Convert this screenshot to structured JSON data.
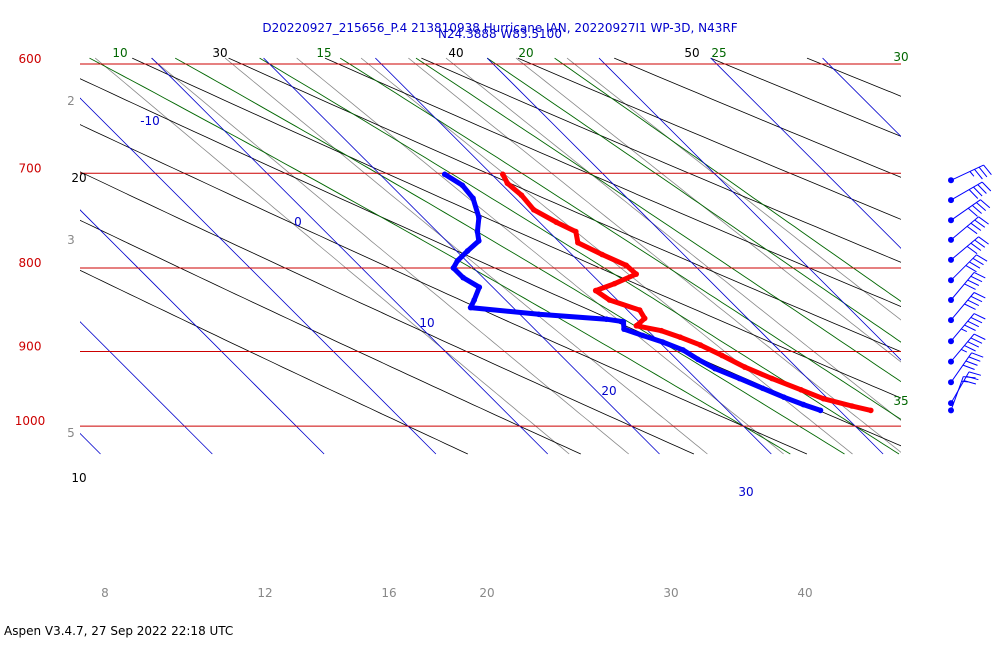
{
  "header": {
    "line1": "D20220927_215656_P.4 213810938 Hurricane IAN, 20220927I1 WP-3D, N43RF",
    "line2": "N24.3888 W83.5100"
  },
  "footer": "Aspen V3.4.7, 27 Sep 2022  22:18 UTC",
  "colors": {
    "isobar": "#cc0000",
    "temperature": "#ff0000",
    "dewpoint": "#0000ff",
    "isotherm": "#0000cc",
    "dry_adiabat": "#000000",
    "moist_adiabat": "#006600",
    "mixing_ratio": "#888888",
    "wind_barb": "#0000ff"
  },
  "chart_data": {
    "type": "skew-t log-p",
    "pressure_range_hPa": [
      1035,
      600
    ],
    "isobars": [
      {
        "p": 600,
        "label": "600"
      },
      {
        "p": 700,
        "label": "700"
      },
      {
        "p": 800,
        "label": "800"
      },
      {
        "p": 900,
        "label": "900"
      },
      {
        "p": 1000,
        "label": "1000"
      }
    ],
    "isotherm_labels": [
      {
        "t": -10,
        "label": "-10"
      },
      {
        "t": 0,
        "label": "0"
      },
      {
        "t": 10,
        "label": "10"
      },
      {
        "t": 20,
        "label": "20"
      },
      {
        "t": 30,
        "label": "30"
      }
    ],
    "dry_adiabat_labels": [
      "30",
      "40",
      "50",
      "20",
      "10"
    ],
    "moist_adiabat_labels": [
      "10",
      "15",
      "20",
      "25",
      "30",
      "35"
    ],
    "mixing_ratio_labels": [
      "2",
      "3",
      "5",
      "8",
      "12",
      "16",
      "20",
      "30",
      "40"
    ],
    "temperature_profile": [
      {
        "p": 701,
        "t": 11.0
      },
      {
        "p": 710,
        "t": 10.6
      },
      {
        "p": 722,
        "t": 10.8
      },
      {
        "p": 737,
        "t": 10.6
      },
      {
        "p": 750,
        "t": 11.5
      },
      {
        "p": 760,
        "t": 12.4
      },
      {
        "p": 772,
        "t": 11.6
      },
      {
        "p": 785,
        "t": 12.7
      },
      {
        "p": 797,
        "t": 13.9
      },
      {
        "p": 807,
        "t": 14.0
      },
      {
        "p": 818,
        "t": 11.2
      },
      {
        "p": 826,
        "t": 8.9
      },
      {
        "p": 837,
        "t": 9.3
      },
      {
        "p": 849,
        "t": 11.1
      },
      {
        "p": 859,
        "t": 10.8
      },
      {
        "p": 868,
        "t": 9.4
      },
      {
        "p": 874,
        "t": 11.2
      },
      {
        "p": 882,
        "t": 12.3
      },
      {
        "p": 892,
        "t": 13.4
      },
      {
        "p": 905,
        "t": 14.4
      },
      {
        "p": 920,
        "t": 15.4
      },
      {
        "p": 935,
        "t": 16.8
      },
      {
        "p": 950,
        "t": 18.4
      },
      {
        "p": 962,
        "t": 19.6
      },
      {
        "p": 972,
        "t": 21.5
      },
      {
        "p": 978,
        "t": 22.8
      }
    ],
    "dewpoint_profile": [
      {
        "p": 701,
        "t": 5.8
      },
      {
        "p": 712,
        "t": 6.4
      },
      {
        "p": 725,
        "t": 6.2
      },
      {
        "p": 745,
        "t": 5.0
      },
      {
        "p": 760,
        "t": 3.6
      },
      {
        "p": 770,
        "t": 2.9
      },
      {
        "p": 781,
        "t": 1.0
      },
      {
        "p": 792,
        "t": -0.8
      },
      {
        "p": 800,
        "t": -1.8
      },
      {
        "p": 811,
        "t": -1.8
      },
      {
        "p": 822,
        "t": -1.2
      },
      {
        "p": 837,
        "t": -2.8
      },
      {
        "p": 846,
        "t": -3.8
      },
      {
        "p": 854,
        "t": 1.7
      },
      {
        "p": 860,
        "t": 7.3
      },
      {
        "p": 863,
        "t": 8.6
      },
      {
        "p": 872,
        "t": 8.0
      },
      {
        "p": 880,
        "t": 9.1
      },
      {
        "p": 888,
        "t": 10.3
      },
      {
        "p": 898,
        "t": 11.4
      },
      {
        "p": 910,
        "t": 11.9
      },
      {
        "p": 922,
        "t": 12.6
      },
      {
        "p": 935,
        "t": 13.9
      },
      {
        "p": 948,
        "t": 15.1
      },
      {
        "p": 960,
        "t": 16.2
      },
      {
        "p": 970,
        "t": 17.3
      },
      {
        "p": 978,
        "t": 18.3
      }
    ],
    "wind_barbs": [
      {
        "p": 707,
        "dir_deg": 65,
        "speed_kt": 35
      },
      {
        "p": 727,
        "dir_deg": 60,
        "speed_kt": 40
      },
      {
        "p": 748,
        "dir_deg": 55,
        "speed_kt": 40
      },
      {
        "p": 769,
        "dir_deg": 50,
        "speed_kt": 40
      },
      {
        "p": 791,
        "dir_deg": 50,
        "speed_kt": 40
      },
      {
        "p": 814,
        "dir_deg": 45,
        "speed_kt": 40
      },
      {
        "p": 837,
        "dir_deg": 40,
        "speed_kt": 40
      },
      {
        "p": 861,
        "dir_deg": 40,
        "speed_kt": 40
      },
      {
        "p": 887,
        "dir_deg": 40,
        "speed_kt": 45
      },
      {
        "p": 913,
        "dir_deg": 40,
        "speed_kt": 45
      },
      {
        "p": 940,
        "dir_deg": 35,
        "speed_kt": 40
      },
      {
        "p": 968,
        "dir_deg": 30,
        "speed_kt": 30
      },
      {
        "p": 978,
        "dir_deg": 20,
        "speed_kt": 15
      }
    ]
  }
}
